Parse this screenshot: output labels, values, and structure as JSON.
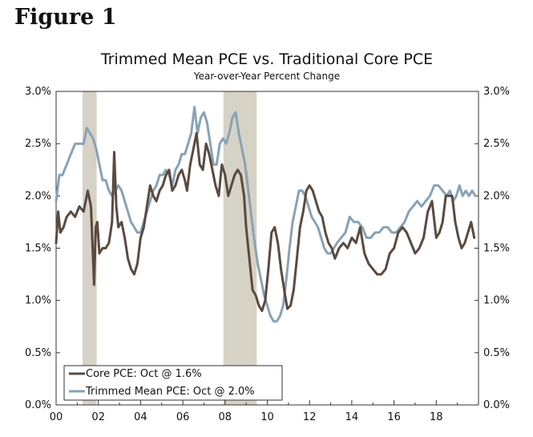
{
  "figure_label": "Figure 1",
  "chart_data": {
    "type": "line",
    "title": "Trimmed Mean PCE vs. Traditional Core PCE",
    "subtitle": "Year-over-Year Percent Change",
    "xlabel": "",
    "ylabel": "",
    "xlim": [
      2000,
      2020
    ],
    "ylim": [
      0,
      3
    ],
    "x_ticks": [
      "00",
      "02",
      "04",
      "06",
      "08",
      "10",
      "12",
      "14",
      "16",
      "18"
    ],
    "y_ticks": [
      "0.0%",
      "0.5%",
      "1.0%",
      "1.5%",
      "2.0%",
      "2.5%",
      "3.0%"
    ],
    "recessions": [
      [
        2001.25,
        2001.92
      ],
      [
        2007.92,
        2009.5
      ]
    ],
    "colors": {
      "recession": "#d6d2c6",
      "core": "#5a4a40",
      "trimmed": "#89a2b6"
    },
    "series": [
      {
        "name": "Core PCE: Oct @ 1.6%",
        "x": [
          2000.0,
          2000.1,
          2000.2,
          2000.35,
          2000.5,
          2000.7,
          2000.9,
          2001.1,
          2001.3,
          2001.5,
          2001.65,
          2001.8,
          2001.88,
          2001.95,
          2002.05,
          2002.2,
          2002.35,
          2002.5,
          2002.65,
          2002.75,
          2002.85,
          2002.95,
          2003.1,
          2003.25,
          2003.4,
          2003.55,
          2003.7,
          2003.85,
          2004.0,
          2004.15,
          2004.3,
          2004.45,
          2004.6,
          2004.75,
          2004.9,
          2005.05,
          2005.2,
          2005.35,
          2005.5,
          2005.65,
          2005.8,
          2005.95,
          2006.1,
          2006.2,
          2006.35,
          2006.5,
          2006.65,
          2006.8,
          2006.95,
          2007.1,
          2007.25,
          2007.4,
          2007.55,
          2007.7,
          2007.85,
          2008.0,
          2008.15,
          2008.3,
          2008.45,
          2008.6,
          2008.75,
          2008.9,
          2009.0,
          2009.15,
          2009.3,
          2009.45,
          2009.6,
          2009.75,
          2009.9,
          2010.05,
          2010.2,
          2010.35,
          2010.5,
          2010.65,
          2010.8,
          2010.95,
          2011.1,
          2011.25,
          2011.4,
          2011.55,
          2011.7,
          2011.85,
          2012.0,
          2012.15,
          2012.3,
          2012.45,
          2012.6,
          2012.75,
          2012.9,
          2013.05,
          2013.2,
          2013.4,
          2013.6,
          2013.8,
          2014.0,
          2014.2,
          2014.4,
          2014.6,
          2014.8,
          2015.0,
          2015.2,
          2015.4,
          2015.6,
          2015.8,
          2016.0,
          2016.2,
          2016.4,
          2016.6,
          2016.8,
          2017.0,
          2017.2,
          2017.4,
          2017.6,
          2017.8,
          2018.0,
          2018.15,
          2018.3,
          2018.45,
          2018.6,
          2018.75,
          2018.9,
          2019.05,
          2019.2,
          2019.35,
          2019.5,
          2019.65,
          2019.8
        ],
        "values": [
          1.55,
          1.85,
          1.65,
          1.7,
          1.8,
          1.85,
          1.8,
          1.9,
          1.85,
          2.05,
          1.9,
          1.15,
          1.7,
          1.75,
          1.45,
          1.5,
          1.5,
          1.55,
          1.75,
          2.42,
          1.9,
          1.7,
          1.75,
          1.6,
          1.4,
          1.3,
          1.25,
          1.35,
          1.6,
          1.7,
          1.9,
          2.1,
          2.0,
          1.95,
          2.05,
          2.1,
          2.2,
          2.25,
          2.05,
          2.1,
          2.2,
          2.25,
          2.15,
          2.05,
          2.3,
          2.45,
          2.6,
          2.3,
          2.25,
          2.5,
          2.4,
          2.25,
          2.1,
          2.0,
          2.3,
          2.2,
          2.0,
          2.1,
          2.2,
          2.25,
          2.2,
          2.0,
          1.7,
          1.4,
          1.1,
          1.05,
          0.95,
          0.9,
          1.0,
          1.3,
          1.65,
          1.7,
          1.55,
          1.3,
          1.1,
          0.92,
          0.95,
          1.1,
          1.4,
          1.7,
          1.85,
          2.05,
          2.1,
          2.05,
          1.95,
          1.85,
          1.8,
          1.65,
          1.55,
          1.5,
          1.4,
          1.5,
          1.55,
          1.5,
          1.6,
          1.55,
          1.7,
          1.45,
          1.35,
          1.3,
          1.25,
          1.25,
          1.3,
          1.45,
          1.5,
          1.65,
          1.7,
          1.65,
          1.55,
          1.45,
          1.5,
          1.6,
          1.85,
          1.95,
          1.6,
          1.65,
          1.75,
          2.0,
          2.0,
          2.0,
          1.75,
          1.6,
          1.5,
          1.55,
          1.65,
          1.75,
          1.6
        ]
      },
      {
        "name": "Trimmed Mean PCE: Oct @ 2.0%",
        "x": [
          2000.0,
          2000.15,
          2000.3,
          2000.5,
          2000.7,
          2000.9,
          2001.1,
          2001.3,
          2001.45,
          2001.6,
          2001.75,
          2001.9,
          2002.05,
          2002.2,
          2002.35,
          2002.5,
          2002.65,
          2002.8,
          2002.95,
          2003.1,
          2003.25,
          2003.4,
          2003.55,
          2003.7,
          2003.85,
          2004.0,
          2004.15,
          2004.3,
          2004.45,
          2004.6,
          2004.75,
          2004.9,
          2005.05,
          2005.2,
          2005.35,
          2005.5,
          2005.65,
          2005.8,
          2005.95,
          2006.1,
          2006.25,
          2006.4,
          2006.55,
          2006.7,
          2006.85,
          2007.0,
          2007.15,
          2007.3,
          2007.45,
          2007.6,
          2007.75,
          2007.9,
          2008.05,
          2008.2,
          2008.35,
          2008.5,
          2008.65,
          2008.8,
          2008.95,
          2009.1,
          2009.25,
          2009.4,
          2009.55,
          2009.7,
          2009.85,
          2010.0,
          2010.15,
          2010.3,
          2010.45,
          2010.6,
          2010.75,
          2010.9,
          2011.05,
          2011.2,
          2011.35,
          2011.5,
          2011.65,
          2011.8,
          2011.95,
          2012.1,
          2012.25,
          2012.4,
          2012.55,
          2012.7,
          2012.85,
          2013.0,
          2013.15,
          2013.3,
          2013.5,
          2013.7,
          2013.9,
          2014.1,
          2014.3,
          2014.5,
          2014.7,
          2014.9,
          2015.1,
          2015.3,
          2015.5,
          2015.7,
          2015.9,
          2016.1,
          2016.3,
          2016.5,
          2016.7,
          2016.9,
          2017.1,
          2017.3,
          2017.5,
          2017.7,
          2017.9,
          2018.1,
          2018.3,
          2018.5,
          2018.65,
          2018.8,
          2018.95,
          2019.1,
          2019.25,
          2019.4,
          2019.55,
          2019.7,
          2019.85
        ],
        "values": [
          1.95,
          2.2,
          2.2,
          2.3,
          2.4,
          2.5,
          2.5,
          2.5,
          2.65,
          2.6,
          2.55,
          2.45,
          2.3,
          2.15,
          2.15,
          2.05,
          2.0,
          2.05,
          2.1,
          2.05,
          1.95,
          1.85,
          1.75,
          1.7,
          1.65,
          1.65,
          1.75,
          1.85,
          1.95,
          2.05,
          2.1,
          2.2,
          2.2,
          2.25,
          2.2,
          2.1,
          2.25,
          2.3,
          2.4,
          2.4,
          2.5,
          2.6,
          2.85,
          2.6,
          2.75,
          2.8,
          2.7,
          2.5,
          2.3,
          2.3,
          2.5,
          2.55,
          2.5,
          2.6,
          2.75,
          2.8,
          2.6,
          2.45,
          2.3,
          2.05,
          1.8,
          1.55,
          1.35,
          1.2,
          1.05,
          0.95,
          0.85,
          0.8,
          0.8,
          0.85,
          0.95,
          1.2,
          1.5,
          1.75,
          1.9,
          2.05,
          2.05,
          2.0,
          1.9,
          1.8,
          1.75,
          1.7,
          1.6,
          1.5,
          1.45,
          1.45,
          1.5,
          1.55,
          1.6,
          1.65,
          1.8,
          1.75,
          1.75,
          1.7,
          1.6,
          1.6,
          1.65,
          1.65,
          1.7,
          1.7,
          1.65,
          1.65,
          1.7,
          1.75,
          1.85,
          1.9,
          1.95,
          1.9,
          1.95,
          2.0,
          2.1,
          2.1,
          2.05,
          2.0,
          2.05,
          1.95,
          2.0,
          2.1,
          2.0,
          2.05,
          2.0,
          2.05,
          2.0
        ]
      }
    ]
  }
}
